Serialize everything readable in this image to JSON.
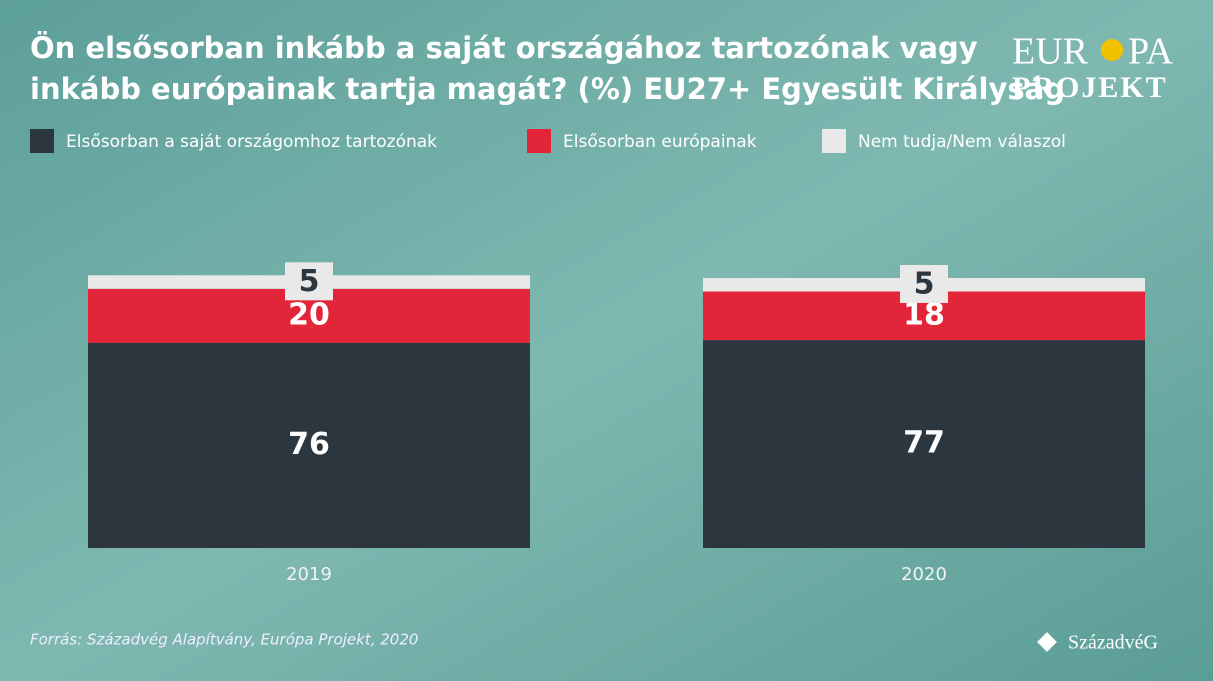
{
  "title": [
    "Ön elsősorban inkább a saját országához tartozónak vagy",
    "inkább európainak tartja magát? (%) EU27+ Egyesült Királyság"
  ],
  "logo": {
    "top_left": "EUR",
    "top_right": "PA",
    "bottom": "PROJEKT"
  },
  "source": "Forrás: Századvég Alapítvány, Európa Projekt, 2020",
  "brand": "SzázadvéG",
  "chart_data": {
    "type": "stacked_bar",
    "categories": [
      "2019",
      "2020"
    ],
    "series": [
      {
        "name": "Elsősorban a saját országomhoz tartozónak",
        "color": "#2b363f",
        "values": [
          76,
          77
        ]
      },
      {
        "name": "Elsősorban európainak",
        "color": "#e3253a",
        "values": [
          20,
          18
        ]
      },
      {
        "name": "Nem tudja/Nem válaszol",
        "color": "#e9e9e9",
        "values": [
          5,
          5
        ]
      }
    ]
  }
}
